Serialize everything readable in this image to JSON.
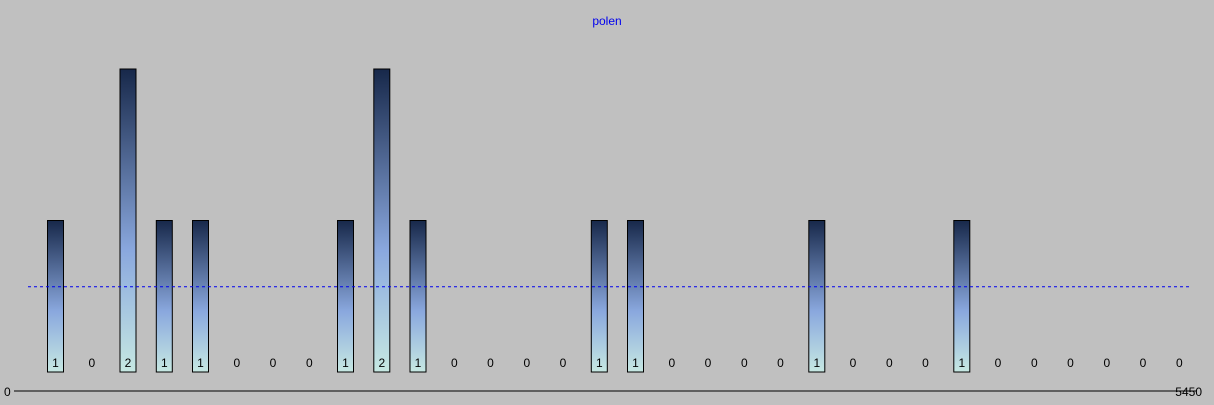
{
  "chart_data": {
    "type": "bar",
    "title": "polen",
    "values": [
      1,
      0,
      2,
      1,
      1,
      0,
      0,
      0,
      1,
      2,
      1,
      0,
      0,
      0,
      0,
      1,
      1,
      0,
      0,
      0,
      0,
      1,
      0,
      0,
      0,
      1,
      0,
      0,
      0,
      0,
      0,
      0
    ],
    "x_axis": {
      "min_label": "0",
      "max_label": "5450"
    },
    "ylim": [
      0,
      2
    ],
    "mean_line": 0.5625,
    "colors": {
      "background": "#c0c0c0",
      "bar_top": "#17284a",
      "bar_middle": "#8aa8de",
      "bar_bottom": "#c6e8e2",
      "bar_border": "#000000",
      "mean_line": "#0000ee",
      "title": "#0000ee"
    }
  }
}
